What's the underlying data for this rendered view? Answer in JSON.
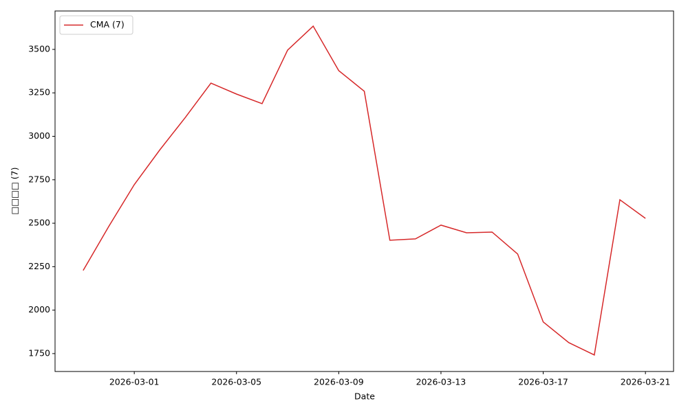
{
  "chart_data": {
    "type": "line",
    "x_label": "Date",
    "y_label": "□□□□ (7)",
    "x": [
      "2026-02-27",
      "2026-02-28",
      "2026-03-01",
      "2026-03-02",
      "2026-03-03",
      "2026-03-04",
      "2026-03-05",
      "2026-03-06",
      "2026-03-07",
      "2026-03-08",
      "2026-03-09",
      "2026-03-10",
      "2026-03-11",
      "2026-03-12",
      "2026-03-13",
      "2026-03-14",
      "2026-03-15",
      "2026-03-16",
      "2026-03-17",
      "2026-03-18",
      "2026-03-19",
      "2026-03-20",
      "2026-03-21"
    ],
    "series": [
      {
        "name": "CMA (7)",
        "color": "#d62728",
        "values": [
          2228,
          2481,
          2722,
          2922,
          3109,
          3306,
          3243,
          3188,
          3496,
          3634,
          3378,
          3259,
          2402,
          2410,
          2489,
          2445,
          2449,
          2323,
          1932,
          1813,
          1742,
          2635,
          2528
        ]
      }
    ],
    "xlim": [
      "2026-02-25T21:36:00Z",
      "2026-03-22T02:24:00Z"
    ],
    "xticks": [
      "2026-03-01",
      "2026-03-05",
      "2026-03-09",
      "2026-03-13",
      "2026-03-17",
      "2026-03-21"
    ],
    "ylim": [
      1647,
      3721
    ],
    "yticks": [
      1750,
      2000,
      2250,
      2500,
      2750,
      3000,
      3250,
      3500
    ],
    "legend": "upper left"
  }
}
